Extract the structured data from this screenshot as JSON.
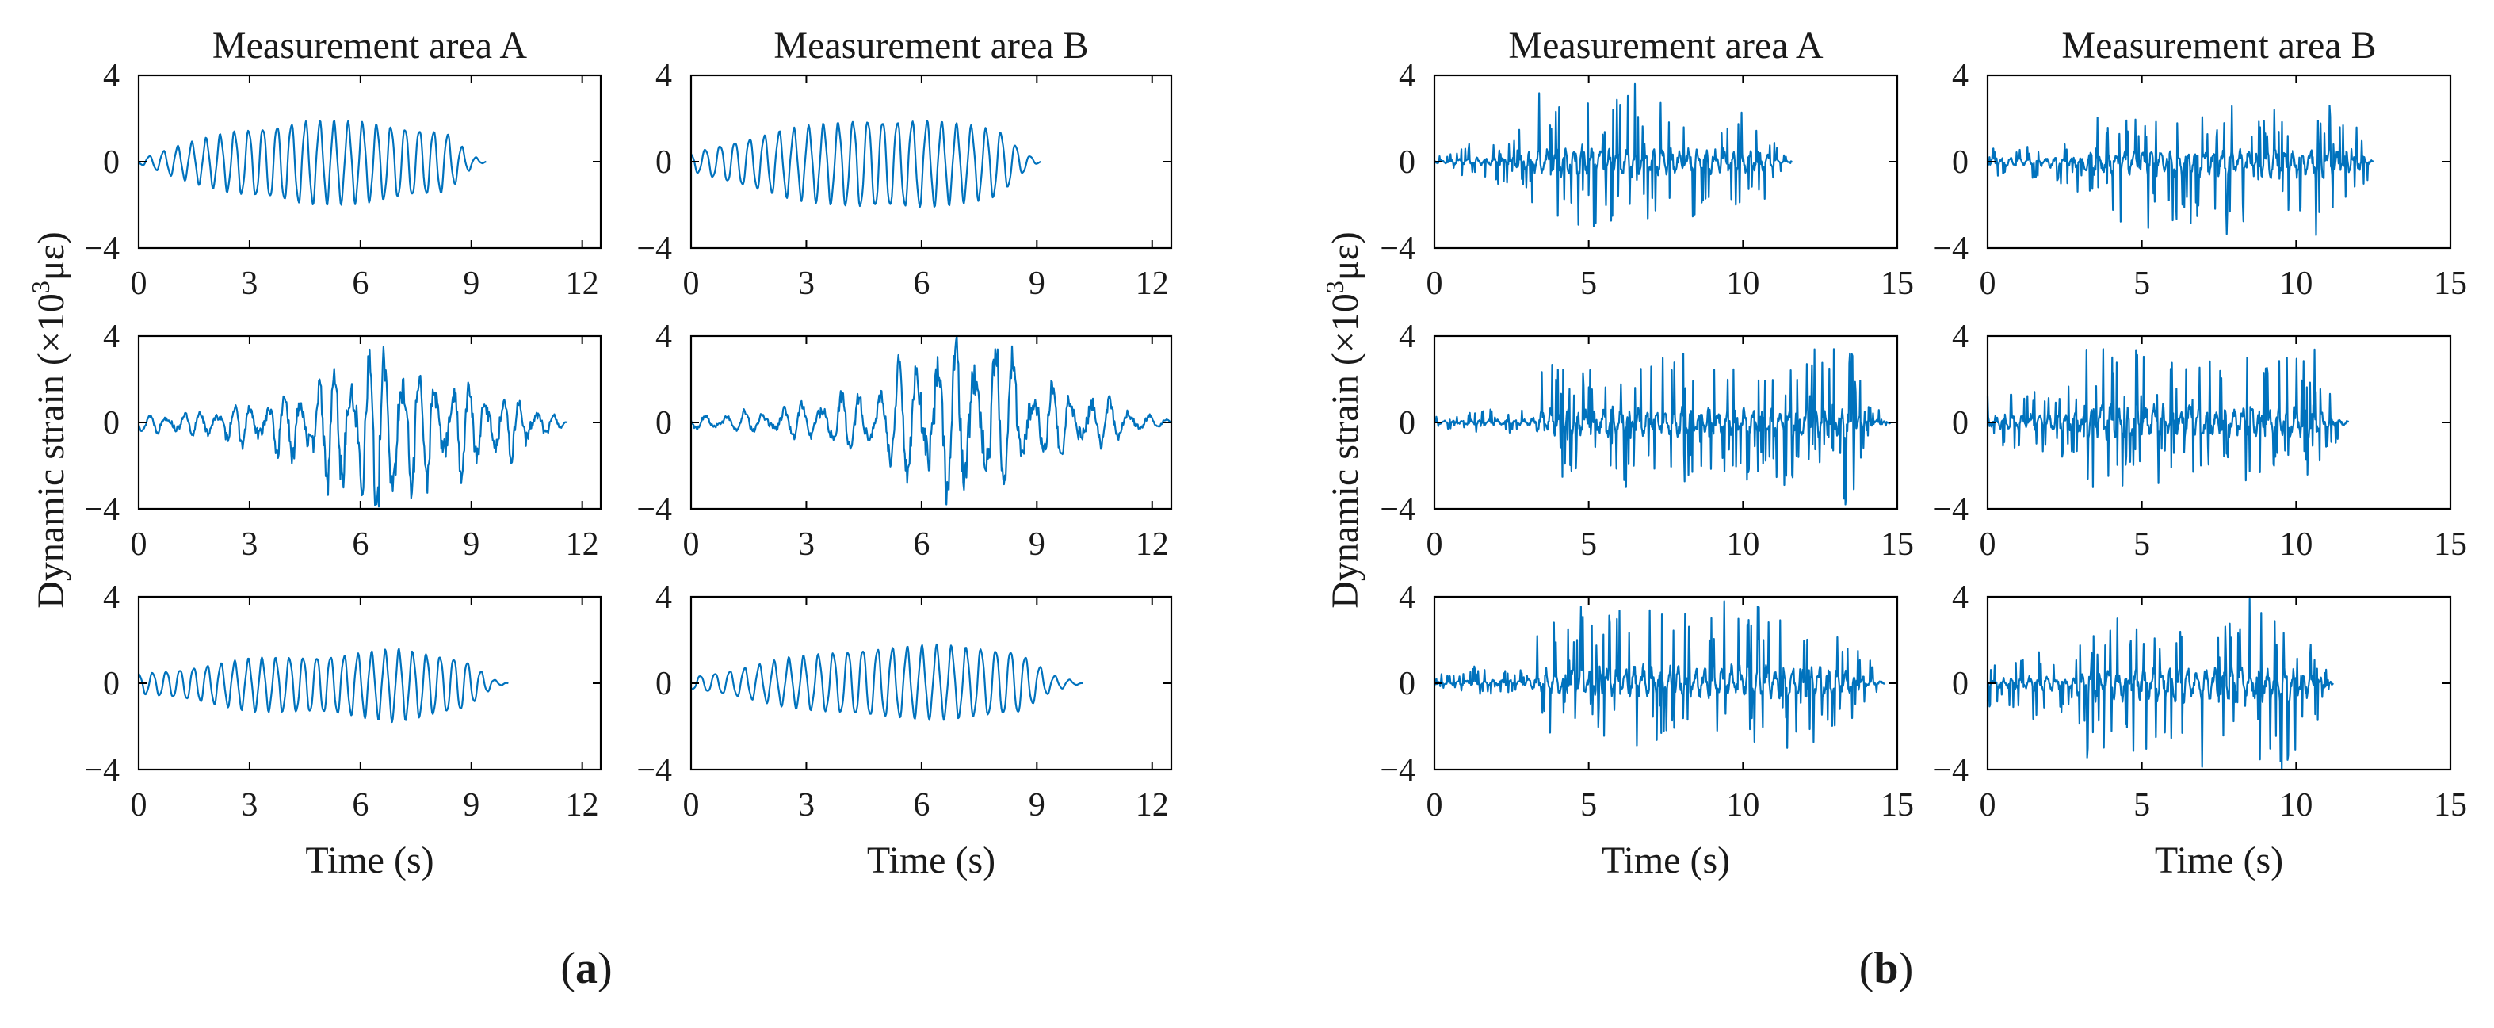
{
  "colors": {
    "signal": "#0072BD",
    "axis": "#000000",
    "background": "#ffffff"
  },
  "figure": {
    "ylabel_prefix": "Dynamic strain (×10",
    "ylabel_exp": "3",
    "ylabel_unit": "με)",
    "xlabel": "Time (s)",
    "column_titles": [
      "Measurement area A",
      "Measurement area B"
    ]
  },
  "panels": [
    {
      "id": "a",
      "label": "a",
      "open": "(",
      "close": ")"
    },
    {
      "id": "b",
      "label": "b",
      "open": "(",
      "close": ")"
    }
  ],
  "chart_data": [
    {
      "type": "line",
      "panel": "a",
      "row": 1,
      "column": "A",
      "title": "Measurement area A",
      "xlabel": "",
      "ylabel": "",
      "xlim": [
        0,
        12.5
      ],
      "ylim": [
        -4,
        4
      ],
      "xticks": [
        0,
        3,
        6,
        9,
        12
      ],
      "yticks": [
        -4,
        0,
        4
      ],
      "duration": 9.4,
      "amplitude_peak": 2.0,
      "max_value": 1.9,
      "min_value": -2.0,
      "style": "narrowband",
      "freq": 2.6,
      "seed": 11,
      "envelope": [
        [
          0,
          0.1
        ],
        [
          1,
          0.7
        ],
        [
          2.5,
          1.4
        ],
        [
          4.5,
          1.9
        ],
        [
          6.2,
          1.8
        ],
        [
          8.3,
          1.4
        ],
        [
          9.0,
          0.3
        ],
        [
          9.4,
          0
        ]
      ]
    },
    {
      "type": "line",
      "panel": "a",
      "row": 1,
      "column": "B",
      "title": "Measurement area B",
      "xlabel": "",
      "ylabel": "",
      "xlim": [
        0,
        12.5
      ],
      "ylim": [
        -4,
        4
      ],
      "xticks": [
        0,
        3,
        6,
        9,
        12
      ],
      "yticks": [
        -4,
        0,
        4
      ],
      "duration": 9.1,
      "amplitude_peak": 2.1,
      "max_value": 1.9,
      "min_value": -2.1,
      "style": "narrowband",
      "freq": 2.6,
      "seed": 12,
      "envelope": [
        [
          0,
          0.4
        ],
        [
          1,
          0.9
        ],
        [
          2.5,
          1.5
        ],
        [
          4.5,
          2.0
        ],
        [
          6.2,
          1.9
        ],
        [
          8.0,
          1.5
        ],
        [
          8.7,
          0.4
        ],
        [
          9.1,
          0
        ]
      ]
    },
    {
      "type": "line",
      "panel": "a",
      "row": 2,
      "column": "A",
      "title": "",
      "xlabel": "",
      "ylabel": "Dynamic strain (×10³ με)",
      "xlim": [
        0,
        12.5
      ],
      "ylim": [
        -4,
        4
      ],
      "xticks": [
        0,
        3,
        6,
        9,
        12
      ],
      "yticks": [
        -4,
        0,
        4
      ],
      "duration": 11.6,
      "amplitude_peak": 3.9,
      "max_value": 3.5,
      "min_value": -3.9,
      "style": "mixed",
      "freq": 2.2,
      "seed": 13,
      "envelope": [
        [
          0,
          0.3
        ],
        [
          2,
          0.6
        ],
        [
          3.5,
          1.0
        ],
        [
          5.0,
          2.2
        ],
        [
          5.8,
          2.9
        ],
        [
          6.9,
          3.9
        ],
        [
          7.6,
          2.4
        ],
        [
          9.0,
          1.7
        ],
        [
          10.5,
          1.0
        ],
        [
          11.3,
          0.3
        ],
        [
          11.6,
          0
        ]
      ]
    },
    {
      "type": "line",
      "panel": "a",
      "row": 2,
      "column": "B",
      "title": "",
      "xlabel": "",
      "ylabel": "",
      "xlim": [
        0,
        12.5
      ],
      "ylim": [
        -4,
        4
      ],
      "xticks": [
        0,
        3,
        6,
        9,
        12
      ],
      "yticks": [
        -4,
        0,
        4
      ],
      "duration": 12.5,
      "amplitude_peak": 4.0,
      "max_value": 4.0,
      "min_value": -3.8,
      "style": "mixed",
      "freq": 2.0,
      "seed": 14,
      "envelope": [
        [
          0,
          0.3
        ],
        [
          2,
          0.6
        ],
        [
          3.5,
          1.1
        ],
        [
          5.0,
          1.8
        ],
        [
          6.1,
          3.8
        ],
        [
          7.4,
          3.9
        ],
        [
          8.2,
          3.6
        ],
        [
          9.0,
          2.0
        ],
        [
          10.5,
          1.3
        ],
        [
          12.0,
          0.3
        ],
        [
          12.5,
          0.1
        ]
      ]
    },
    {
      "type": "line",
      "panel": "a",
      "row": 3,
      "column": "A",
      "title": "",
      "xlabel": "Time (s)",
      "ylabel": "",
      "xlim": [
        0,
        12.5
      ],
      "ylim": [
        -4,
        4
      ],
      "xticks": [
        0,
        3,
        6,
        9,
        12
      ],
      "yticks": [
        -4,
        0,
        4
      ],
      "duration": 10.0,
      "amplitude_peak": 1.8,
      "max_value": 1.6,
      "min_value": -1.8,
      "style": "narrowband",
      "freq": 2.7,
      "seed": 15,
      "envelope": [
        [
          0,
          0.5
        ],
        [
          1,
          0.7
        ],
        [
          3,
          1.3
        ],
        [
          5.5,
          1.5
        ],
        [
          7.0,
          1.8
        ],
        [
          8.8,
          1.3
        ],
        [
          9.6,
          0.2
        ],
        [
          10.0,
          0
        ]
      ]
    },
    {
      "type": "line",
      "panel": "a",
      "row": 3,
      "column": "B",
      "title": "",
      "xlabel": "Time (s)",
      "ylabel": "",
      "xlim": [
        0,
        12.5
      ],
      "ylim": [
        -4,
        4
      ],
      "xticks": [
        0,
        3,
        6,
        9,
        12
      ],
      "yticks": [
        -4,
        0,
        4
      ],
      "duration": 10.2,
      "amplitude_peak": 1.8,
      "max_value": 1.8,
      "min_value": -1.7,
      "style": "narrowband",
      "freq": 2.6,
      "seed": 16,
      "envelope": [
        [
          0,
          0.3
        ],
        [
          1,
          0.6
        ],
        [
          2.5,
          1.2
        ],
        [
          4.5,
          1.7
        ],
        [
          6.5,
          1.8
        ],
        [
          8.5,
          1.6
        ],
        [
          9.4,
          0.4
        ],
        [
          10.2,
          0
        ]
      ]
    },
    {
      "type": "line",
      "panel": "b",
      "row": 1,
      "column": "A",
      "title": "Measurement area A",
      "xlabel": "",
      "ylabel": "",
      "xlim": [
        0,
        15
      ],
      "ylim": [
        -4,
        4
      ],
      "xticks": [
        0,
        5,
        10,
        15
      ],
      "yticks": [
        -4,
        0,
        4
      ],
      "duration": 11.6,
      "amplitude_peak": 3.6,
      "max_value": 3.6,
      "min_value": -3.0,
      "style": "spiky",
      "freq": 3.5,
      "seed": 21,
      "envelope": [
        [
          0,
          0.3
        ],
        [
          1.2,
          0.9
        ],
        [
          2.5,
          1.2
        ],
        [
          3.4,
          3.0
        ],
        [
          4.5,
          3.5
        ],
        [
          6.0,
          3.3
        ],
        [
          6.8,
          3.6
        ],
        [
          8.0,
          2.6
        ],
        [
          9.5,
          2.6
        ],
        [
          10.5,
          2.5
        ],
        [
          11.2,
          0.5
        ],
        [
          11.6,
          0
        ]
      ]
    },
    {
      "type": "line",
      "panel": "b",
      "row": 1,
      "column": "B",
      "title": "Measurement area B",
      "xlabel": "",
      "ylabel": "",
      "xlim": [
        0,
        15
      ],
      "ylim": [
        -4,
        4
      ],
      "xticks": [
        0,
        5,
        10,
        15
      ],
      "yticks": [
        -4,
        0,
        4
      ],
      "duration": 12.5,
      "amplitude_peak": 3.4,
      "max_value": 2.6,
      "min_value": -3.4,
      "style": "spiky",
      "freq": 3.5,
      "seed": 22,
      "envelope": [
        [
          0,
          0.8
        ],
        [
          1.5,
          0.8
        ],
        [
          3.0,
          1.2
        ],
        [
          3.6,
          2.4
        ],
        [
          5.5,
          2.6
        ],
        [
          7.5,
          2.6
        ],
        [
          9.0,
          2.6
        ],
        [
          11.0,
          3.0
        ],
        [
          12.0,
          2.0
        ],
        [
          12.5,
          0.1
        ]
      ]
    },
    {
      "type": "line",
      "panel": "b",
      "row": 2,
      "column": "A",
      "title": "",
      "xlabel": "",
      "ylabel": "Dynamic strain (×10³ με)",
      "xlim": [
        0,
        15
      ],
      "ylim": [
        -4,
        4
      ],
      "xticks": [
        0,
        5,
        10,
        15
      ],
      "yticks": [
        -4,
        0,
        4
      ],
      "duration": 14.8,
      "amplitude_peak": 3.8,
      "max_value": 3.4,
      "min_value": -3.8,
      "style": "spiky",
      "freq": 3.5,
      "seed": 23,
      "envelope": [
        [
          0,
          0.3
        ],
        [
          1.5,
          0.6
        ],
        [
          3.0,
          0.6
        ],
        [
          3.5,
          2.6
        ],
        [
          5.0,
          3.0
        ],
        [
          7.5,
          3.2
        ],
        [
          9.0,
          3.0
        ],
        [
          11.5,
          3.0
        ],
        [
          13.5,
          3.8
        ],
        [
          14.0,
          1.2
        ],
        [
          14.8,
          0
        ]
      ]
    },
    {
      "type": "line",
      "panel": "b",
      "row": 2,
      "column": "B",
      "title": "",
      "xlabel": "",
      "ylabel": "",
      "xlim": [
        0,
        15
      ],
      "ylim": [
        -4,
        4
      ],
      "xticks": [
        0,
        5,
        10,
        15
      ],
      "yticks": [
        -4,
        0,
        4
      ],
      "duration": 11.7,
      "amplitude_peak": 3.4,
      "max_value": 3.4,
      "min_value": -3.0,
      "style": "spiky",
      "freq": 3.5,
      "seed": 24,
      "envelope": [
        [
          0,
          1.2
        ],
        [
          1.5,
          1.4
        ],
        [
          2.8,
          1.6
        ],
        [
          3.2,
          3.3
        ],
        [
          4.5,
          2.8
        ],
        [
          6.5,
          2.6
        ],
        [
          8.5,
          2.8
        ],
        [
          10.5,
          2.6
        ],
        [
          11.2,
          1.2
        ],
        [
          11.7,
          0.2
        ]
      ]
    },
    {
      "type": "line",
      "panel": "b",
      "row": 3,
      "column": "A",
      "title": "",
      "xlabel": "Time (s)",
      "ylabel": "",
      "xlim": [
        0,
        15
      ],
      "ylim": [
        -4,
        4
      ],
      "xticks": [
        0,
        5,
        10,
        15
      ],
      "yticks": [
        -4,
        0,
        4
      ],
      "duration": 14.6,
      "amplitude_peak": 3.8,
      "max_value": 3.8,
      "min_value": -3.0,
      "style": "spiky",
      "freq": 3.5,
      "seed": 25,
      "envelope": [
        [
          0,
          0.3
        ],
        [
          1.5,
          0.7
        ],
        [
          3.0,
          0.5
        ],
        [
          3.4,
          2.6
        ],
        [
          5.0,
          3.0
        ],
        [
          6.5,
          3.5
        ],
        [
          8.0,
          3.4
        ],
        [
          10.5,
          3.6
        ],
        [
          12.5,
          3.6
        ],
        [
          13.5,
          2.2
        ],
        [
          14.6,
          0.1
        ]
      ]
    },
    {
      "type": "line",
      "panel": "b",
      "row": 3,
      "column": "B",
      "title": "",
      "xlabel": "Time (s)",
      "ylabel": "",
      "xlim": [
        0,
        15
      ],
      "ylim": [
        -4,
        4
      ],
      "xticks": [
        0,
        5,
        10,
        15
      ],
      "yticks": [
        -4,
        0,
        4
      ],
      "duration": 11.2,
      "amplitude_peak": 4.0,
      "max_value": 3.9,
      "min_value": -4.0,
      "style": "spiky",
      "freq": 3.5,
      "seed": 26,
      "envelope": [
        [
          0,
          1.0
        ],
        [
          1.5,
          1.5
        ],
        [
          2.8,
          1.2
        ],
        [
          3.0,
          3.0
        ],
        [
          5.0,
          3.3
        ],
        [
          7.0,
          3.2
        ],
        [
          8.6,
          4.0
        ],
        [
          10.0,
          3.2
        ],
        [
          10.8,
          1.5
        ],
        [
          11.2,
          0.3
        ]
      ]
    }
  ]
}
